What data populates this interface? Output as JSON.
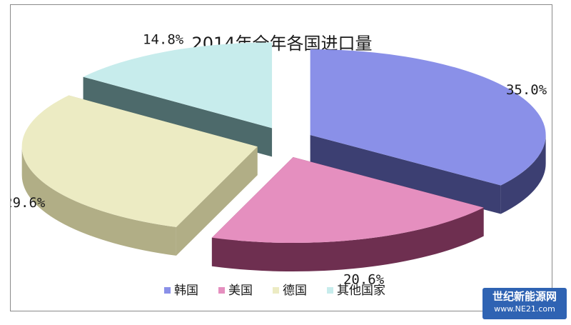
{
  "chart_data": {
    "type": "pie",
    "title": "2014年全年各国进口量",
    "categories": [
      "韩国",
      "美国",
      "德国",
      "其他国家"
    ],
    "values": [
      35.0,
      20.6,
      29.6,
      14.8
    ],
    "value_labels": [
      "35.0%",
      "20.6%",
      "29.6%",
      "14.8%"
    ],
    "colors": [
      "#8a90e8",
      "#e58fbf",
      "#ecebc3",
      "#c7ecec"
    ],
    "side_colors": [
      "#3c3f72",
      "#6e2f50",
      "#b1ae86",
      "#4d6a6b"
    ],
    "legend_position": "bottom",
    "style": "3d-exploded"
  },
  "watermark": {
    "line1": "世纪新能源网",
    "line2": "www.NE21.com"
  }
}
